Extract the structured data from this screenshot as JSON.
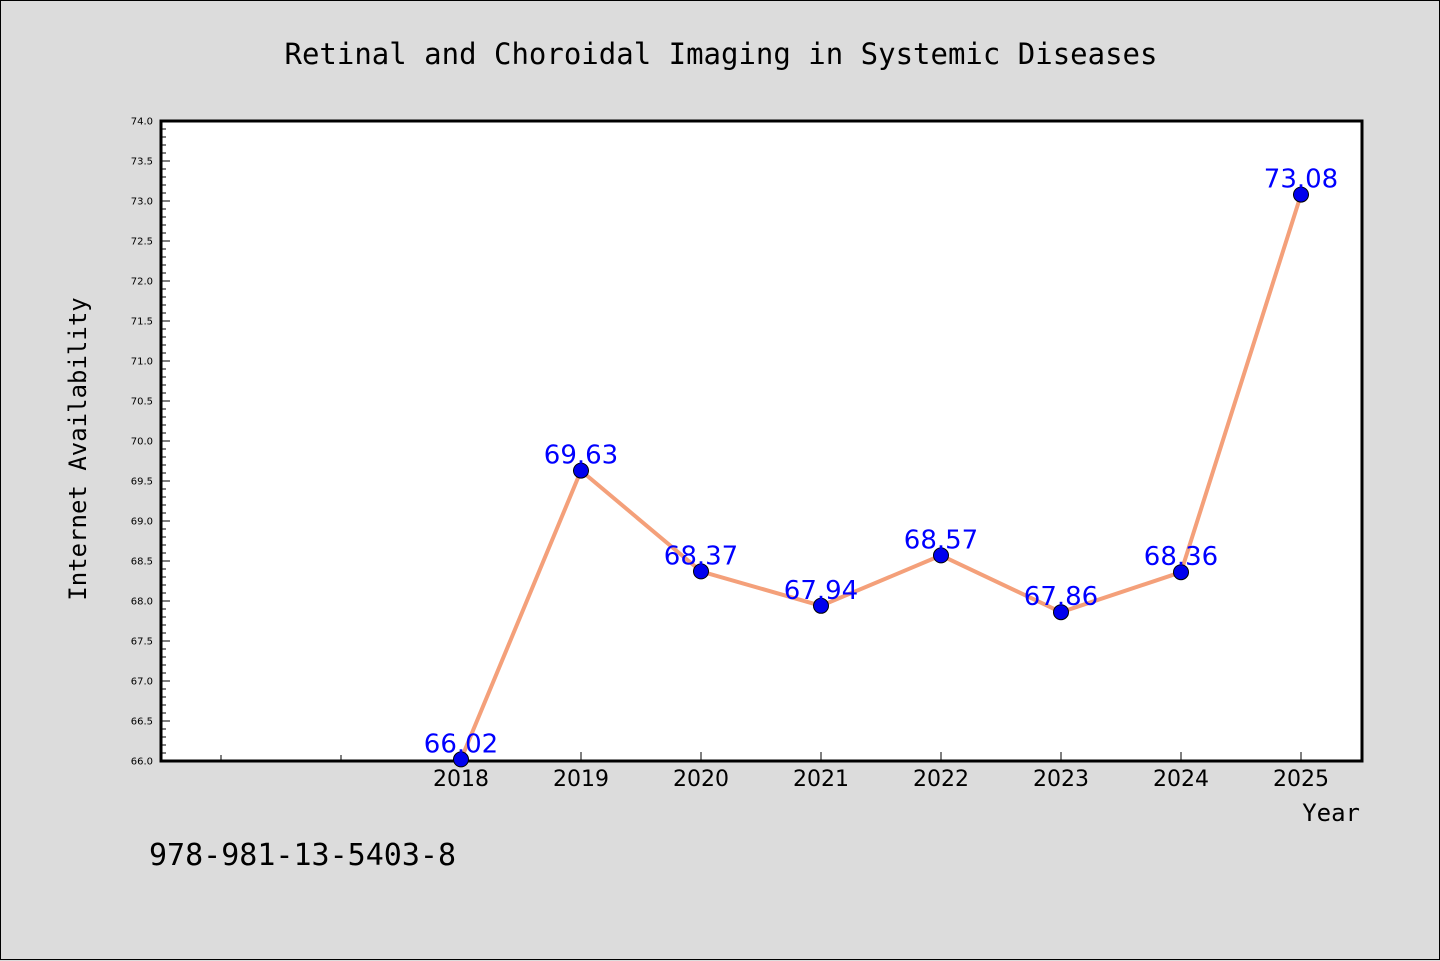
{
  "chart_data": {
    "type": "line",
    "title": "Retinal and Choroidal Imaging in Systemic Diseases",
    "xlabel": "Year",
    "ylabel": "Internet Availability",
    "x": [
      "2018",
      "2019",
      "2020",
      "2021",
      "2022",
      "2023",
      "2024",
      "2025"
    ],
    "values": [
      66.02,
      69.63,
      68.37,
      67.94,
      68.57,
      67.86,
      68.36,
      73.08
    ],
    "data_labels": [
      "66.02",
      "69.63",
      "68.37",
      "67.94",
      "68.57",
      "67.86",
      "68.36",
      "73.08"
    ],
    "ylim": [
      66.0,
      74.0
    ],
    "yticks": [
      "66.0",
      "66.5",
      "67.0",
      "67.5",
      "68.0",
      "68.5",
      "69.0",
      "69.5",
      "70.0",
      "70.5",
      "71.0",
      "71.5",
      "72.0",
      "72.5",
      "73.0",
      "73.5",
      "74.0"
    ],
    "grid": false,
    "line_color": "#f4a07a",
    "marker_color": "#0000ee",
    "label_color": "#0000ff"
  },
  "footer": {
    "isbn": "978-981-13-5403-8"
  }
}
